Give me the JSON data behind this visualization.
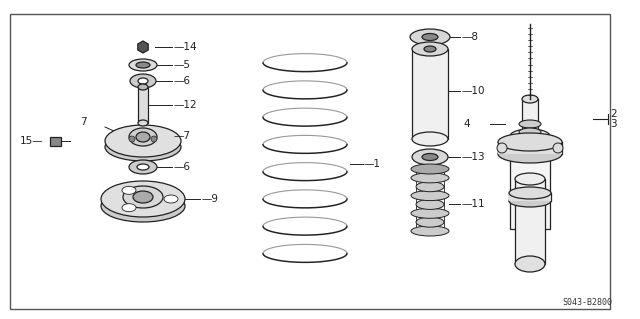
{
  "bg_color": "#ffffff",
  "border_color": "#666666",
  "line_color": "#222222",
  "fill_light": "#e8e8e8",
  "fill_mid": "#cccccc",
  "fill_dark": "#888888",
  "title_code": "S043-B2800",
  "fig_width": 6.4,
  "fig_height": 3.19,
  "dpi": 100
}
